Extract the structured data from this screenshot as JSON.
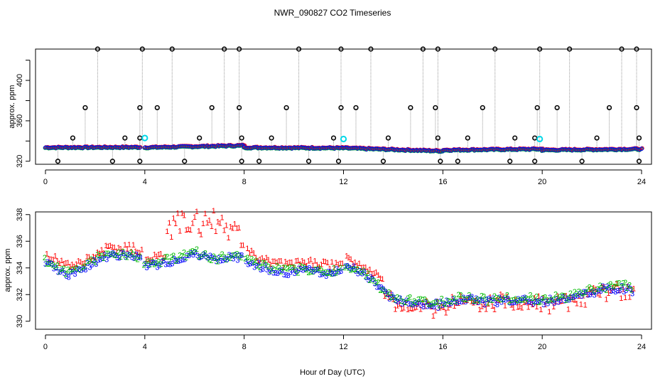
{
  "title": "NWR_090827  CO2 Timeseries",
  "xlabel": "Hour of Day (UTC)",
  "colors": {
    "series1": "#ff0000",
    "series2": "#00bb00",
    "series3": "#0000ff",
    "flag": "#00d8e8",
    "outlier": "#000000",
    "drop": "#999999"
  },
  "chart_data": [
    {
      "type": "scatter",
      "name": "top-panel",
      "ylabel": "approx. ppm",
      "xlim": [
        -0.4,
        24.4
      ],
      "ylim": [
        317,
        431
      ],
      "xticks": [
        "0",
        "4",
        "8",
        "12",
        "16",
        "20",
        "24"
      ],
      "yticks": [
        "320",
        "360",
        "400"
      ],
      "baseline_segments": [
        {
          "x": [
            0,
            3.8
          ],
          "y": [
            333.5,
            333.8
          ]
        },
        {
          "x": [
            4,
            8
          ],
          "y": [
            333.5,
            335.5
          ]
        },
        {
          "x": [
            8,
            12
          ],
          "y": [
            333.5,
            333
          ]
        },
        {
          "x": [
            12,
            16
          ],
          "y": [
            333,
            330
          ]
        },
        {
          "x": [
            16,
            20
          ],
          "y": [
            331,
            332
          ]
        },
        {
          "x": [
            20,
            24
          ],
          "y": [
            331,
            332
          ]
        }
      ],
      "outliers_high": [
        2.1,
        3.9,
        5.1,
        7.2,
        7.8,
        10.2,
        11.9,
        13.1,
        15.2,
        15.8,
        18.1,
        19.9,
        21.1,
        23.2,
        23.8
      ],
      "outliers_mid": [
        1.6,
        3.8,
        4.5,
        6.7,
        7.8,
        9.7,
        11.9,
        12.5,
        14.7,
        15.7,
        17.6,
        19.8,
        20.6,
        22.7,
        23.8
      ],
      "outliers_low": [
        1.1,
        3.2,
        3.8,
        6.2,
        7.9,
        9.1,
        11.6,
        13.8,
        15.8,
        17.0,
        18.9,
        19.7,
        22.2,
        23.9
      ],
      "outliers_min": [
        0.5,
        2.7,
        3.8,
        5.6,
        7.9,
        8.6,
        10.6,
        11.8,
        13.6,
        15.9,
        16.6,
        18.7,
        19.7,
        21.6,
        23.9
      ],
      "values_high": 431,
      "values_mid": 373,
      "values_low": 343,
      "values_min": 320,
      "flags": [
        {
          "x": 4.0,
          "y": 343
        },
        {
          "x": 12.0,
          "y": 342
        },
        {
          "x": 19.9,
          "y": 342
        }
      ]
    },
    {
      "type": "scatter",
      "name": "bottom-panel",
      "ylabel": "approx. ppm",
      "xlim": [
        -0.4,
        24.4
      ],
      "ylim": [
        329.4,
        338.2
      ],
      "xticks": [
        "0",
        "4",
        "8",
        "12",
        "16",
        "20",
        "24"
      ],
      "yticks": [
        "330",
        "332",
        "334",
        "336",
        "338"
      ],
      "marker_labels": [
        "1",
        "2",
        "3"
      ],
      "profile": [
        [
          0,
          334.5
        ],
        [
          0.5,
          334.0
        ],
        [
          1.0,
          333.6
        ],
        [
          1.5,
          334.0
        ],
        [
          2.0,
          334.6
        ],
        [
          2.5,
          335.0
        ],
        [
          3.0,
          335.0
        ],
        [
          3.5,
          335.0
        ],
        [
          3.8,
          334.8
        ],
        [
          4.0,
          334.2
        ],
        [
          4.5,
          334.4
        ],
        [
          5.0,
          334.6
        ],
        [
          5.5,
          334.8
        ],
        [
          6.0,
          335.2
        ],
        [
          6.5,
          334.8
        ],
        [
          7.0,
          334.7
        ],
        [
          7.5,
          334.9
        ],
        [
          7.9,
          335.0
        ],
        [
          8.0,
          334.8
        ],
        [
          8.5,
          334.3
        ],
        [
          9.0,
          334.0
        ],
        [
          9.5,
          333.8
        ],
        [
          10.0,
          333.8
        ],
        [
          10.5,
          333.9
        ],
        [
          11.0,
          333.8
        ],
        [
          11.5,
          333.7
        ],
        [
          11.9,
          333.8
        ],
        [
          12.0,
          334.3
        ],
        [
          12.5,
          333.9
        ],
        [
          13.0,
          333.4
        ],
        [
          13.5,
          332.5
        ],
        [
          14.0,
          331.8
        ],
        [
          14.5,
          331.5
        ],
        [
          15.0,
          331.5
        ],
        [
          15.5,
          331.3
        ],
        [
          16.0,
          331.4
        ],
        [
          16.5,
          331.7
        ],
        [
          17.0,
          331.8
        ],
        [
          17.5,
          331.6
        ],
        [
          18.0,
          331.6
        ],
        [
          18.5,
          331.7
        ],
        [
          19.0,
          331.6
        ],
        [
          19.5,
          331.7
        ],
        [
          20.0,
          331.6
        ],
        [
          20.5,
          331.7
        ],
        [
          21.0,
          331.8
        ],
        [
          21.5,
          332.1
        ],
        [
          22.0,
          332.3
        ],
        [
          22.5,
          332.5
        ],
        [
          23.0,
          332.6
        ],
        [
          23.5,
          332.6
        ],
        [
          23.7,
          332.3
        ]
      ],
      "series_offsets": {
        "1": 0.45,
        "2": 0.0,
        "3": -0.15
      }
    }
  ]
}
